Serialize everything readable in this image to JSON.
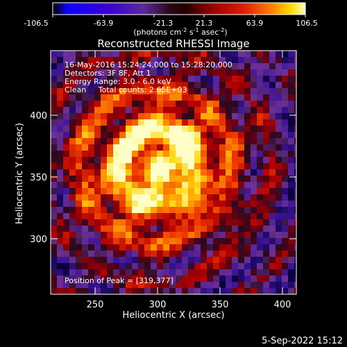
{
  "colorbar": {
    "ticks": [
      "-106.5",
      "-63.9",
      "-21.3",
      "21.3",
      "63.9",
      "106.5"
    ],
    "units_parts": [
      "(photons cm",
      "-2",
      " s",
      "-1",
      " asec",
      "-2",
      ")"
    ]
  },
  "title": "Reconstructed RHESSI Image",
  "info": {
    "line1": "16-May-2016 15:24:24.000 to 15:28:20.000",
    "line2": "Detectors: 3F 8F, Att 1",
    "line3": "Energy Range: 3.0 - 6.0 keV",
    "line4": "Clean     Total counts: 2.65E+03"
  },
  "peak": "Position of Peak = [319,377]",
  "axes": {
    "xlabel": "Heliocentric X (arcsec)",
    "ylabel": "Heliocentric Y (arcsec)",
    "xticks": [
      "250",
      "300",
      "350",
      "400"
    ],
    "yticks": [
      "300",
      "350",
      "400"
    ]
  },
  "footer_timestamp": "5-Sep-2022 15:12",
  "colors": {
    "colormap": [
      "#000000",
      "#1a00ff",
      "#5a00c8",
      "#7a2aa0",
      "#a0005a",
      "#d00000",
      "#ff5a00",
      "#ffb000",
      "#ffff80"
    ]
  }
}
